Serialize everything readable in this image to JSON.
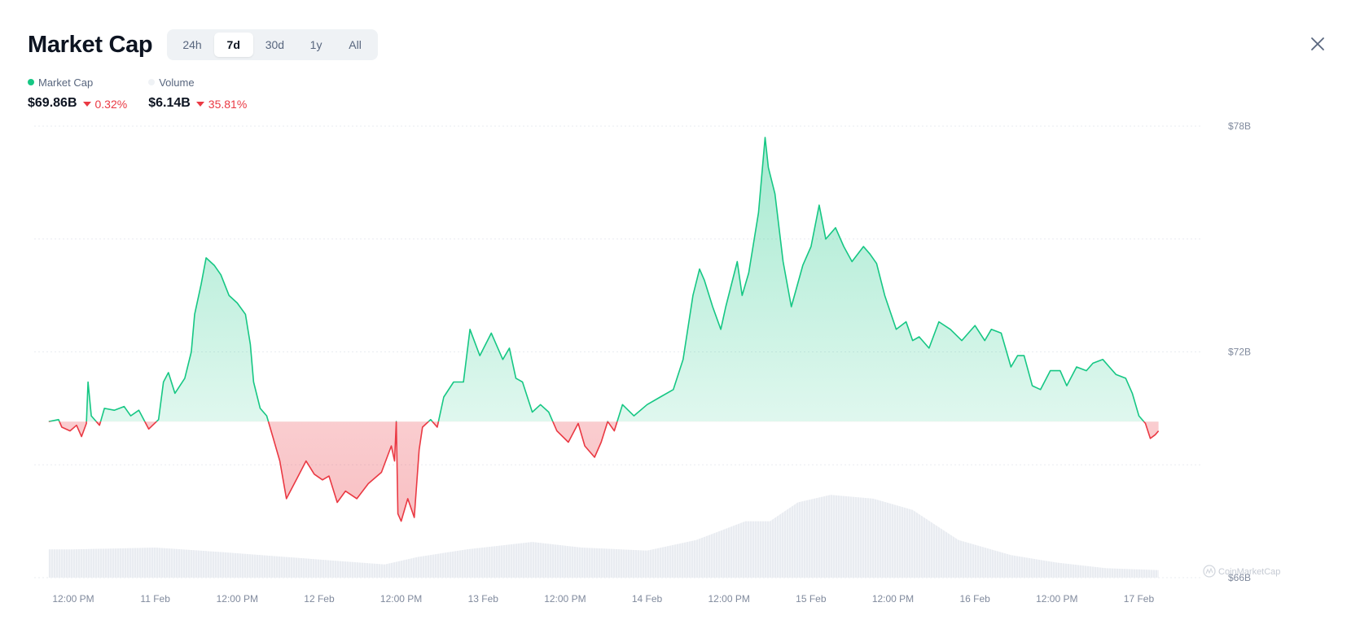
{
  "header": {
    "title": "Market Cap",
    "tabs": [
      {
        "label": "24h",
        "active": false
      },
      {
        "label": "7d",
        "active": true
      },
      {
        "label": "30d",
        "active": false
      },
      {
        "label": "1y",
        "active": false
      },
      {
        "label": "All",
        "active": false
      }
    ],
    "close_icon": "close-icon"
  },
  "legend": {
    "market_cap": {
      "label": "Market Cap",
      "value": "$69.86B",
      "change": "0.32%",
      "color": "#16c784"
    },
    "volume": {
      "label": "Volume",
      "value": "$6.14B",
      "change": "35.81%",
      "color": "#eff2f5"
    }
  },
  "colors": {
    "up": "#16c784",
    "down": "#ea3943",
    "neutral": "#808a9d"
  },
  "watermark": "CoinMarketCap",
  "chart_data": {
    "type": "area",
    "title": "Market Cap",
    "baseline": 70.15,
    "ylim": [
      66,
      78
    ],
    "y_ticks": [
      66,
      72,
      78
    ],
    "y_tick_labels": [
      "$66B",
      "$72B",
      "$78B"
    ],
    "x_range": [
      0,
      7
    ],
    "x_ticks": [
      {
        "x": 0.0,
        "label": "12:00 PM"
      },
      {
        "x": 0.5,
        "label": "11 Feb"
      },
      {
        "x": 1.0,
        "label": "12:00 PM"
      },
      {
        "x": 1.5,
        "label": "12 Feb"
      },
      {
        "x": 2.0,
        "label": "12:00 PM"
      },
      {
        "x": 2.5,
        "label": "13 Feb"
      },
      {
        "x": 3.0,
        "label": "12:00 PM"
      },
      {
        "x": 3.5,
        "label": "14 Feb"
      },
      {
        "x": 4.0,
        "label": "12:00 PM"
      },
      {
        "x": 4.5,
        "label": "15 Feb"
      },
      {
        "x": 5.0,
        "label": "12:00 PM"
      },
      {
        "x": 5.5,
        "label": "16 Feb"
      },
      {
        "x": 6.0,
        "label": "12:00 PM"
      },
      {
        "x": 6.5,
        "label": "17 Feb"
      }
    ],
    "series": [
      {
        "name": "Market Cap",
        "points": [
          [
            -0.15,
            70.15
          ],
          [
            -0.09,
            70.2
          ],
          [
            -0.07,
            70.0
          ],
          [
            -0.02,
            69.9
          ],
          [
            0.02,
            70.05
          ],
          [
            0.05,
            69.75
          ],
          [
            0.08,
            70.1
          ],
          [
            0.09,
            71.2
          ],
          [
            0.11,
            70.3
          ],
          [
            0.16,
            70.05
          ],
          [
            0.19,
            70.5
          ],
          [
            0.25,
            70.45
          ],
          [
            0.31,
            70.55
          ],
          [
            0.35,
            70.3
          ],
          [
            0.4,
            70.45
          ],
          [
            0.46,
            69.95
          ],
          [
            0.52,
            70.2
          ],
          [
            0.55,
            71.2
          ],
          [
            0.58,
            71.45
          ],
          [
            0.62,
            70.9
          ],
          [
            0.68,
            71.3
          ],
          [
            0.72,
            72.0
          ],
          [
            0.74,
            73.0
          ],
          [
            0.78,
            73.8
          ],
          [
            0.81,
            74.5
          ],
          [
            0.86,
            74.3
          ],
          [
            0.9,
            74.05
          ],
          [
            0.95,
            73.5
          ],
          [
            1.0,
            73.3
          ],
          [
            1.05,
            73.0
          ],
          [
            1.08,
            72.2
          ],
          [
            1.1,
            71.2
          ],
          [
            1.14,
            70.5
          ],
          [
            1.18,
            70.3
          ],
          [
            1.22,
            69.7
          ],
          [
            1.26,
            69.1
          ],
          [
            1.3,
            68.1
          ],
          [
            1.36,
            68.6
          ],
          [
            1.42,
            69.1
          ],
          [
            1.47,
            68.75
          ],
          [
            1.52,
            68.6
          ],
          [
            1.56,
            68.7
          ],
          [
            1.61,
            68.0
          ],
          [
            1.66,
            68.3
          ],
          [
            1.73,
            68.1
          ],
          [
            1.8,
            68.5
          ],
          [
            1.88,
            68.8
          ],
          [
            1.94,
            69.5
          ],
          [
            1.96,
            69.1
          ],
          [
            1.97,
            70.15
          ],
          [
            1.98,
            67.7
          ],
          [
            2.0,
            67.5
          ],
          [
            2.04,
            68.1
          ],
          [
            2.08,
            67.6
          ],
          [
            2.11,
            69.4
          ],
          [
            2.13,
            70.0
          ],
          [
            2.18,
            70.2
          ],
          [
            2.22,
            70.0
          ],
          [
            2.26,
            70.8
          ],
          [
            2.32,
            71.2
          ],
          [
            2.38,
            71.2
          ],
          [
            2.42,
            72.6
          ],
          [
            2.48,
            71.9
          ],
          [
            2.55,
            72.5
          ],
          [
            2.62,
            71.8
          ],
          [
            2.66,
            72.1
          ],
          [
            2.7,
            71.3
          ],
          [
            2.74,
            71.2
          ],
          [
            2.8,
            70.4
          ],
          [
            2.85,
            70.6
          ],
          [
            2.9,
            70.4
          ],
          [
            2.95,
            69.9
          ],
          [
            3.02,
            69.6
          ],
          [
            3.08,
            70.1
          ],
          [
            3.12,
            69.5
          ],
          [
            3.18,
            69.2
          ],
          [
            3.22,
            69.6
          ],
          [
            3.26,
            70.15
          ],
          [
            3.3,
            69.9
          ],
          [
            3.35,
            70.6
          ],
          [
            3.42,
            70.3
          ],
          [
            3.5,
            70.6
          ],
          [
            3.58,
            70.8
          ],
          [
            3.66,
            71.0
          ],
          [
            3.72,
            71.8
          ],
          [
            3.78,
            73.5
          ],
          [
            3.82,
            74.2
          ],
          [
            3.85,
            73.9
          ],
          [
            3.9,
            73.2
          ],
          [
            3.95,
            72.6
          ],
          [
            3.98,
            73.2
          ],
          [
            4.05,
            74.4
          ],
          [
            4.08,
            73.5
          ],
          [
            4.12,
            74.1
          ],
          [
            4.18,
            75.7
          ],
          [
            4.22,
            77.7
          ],
          [
            4.24,
            76.9
          ],
          [
            4.28,
            76.2
          ],
          [
            4.33,
            74.4
          ],
          [
            4.38,
            73.2
          ],
          [
            4.45,
            74.3
          ],
          [
            4.5,
            74.8
          ],
          [
            4.55,
            75.9
          ],
          [
            4.59,
            75.0
          ],
          [
            4.65,
            75.3
          ],
          [
            4.7,
            74.8
          ],
          [
            4.75,
            74.4
          ],
          [
            4.82,
            74.8
          ],
          [
            4.86,
            74.6
          ],
          [
            4.9,
            74.35
          ],
          [
            4.95,
            73.5
          ],
          [
            5.02,
            72.6
          ],
          [
            5.08,
            72.8
          ],
          [
            5.12,
            72.3
          ],
          [
            5.16,
            72.4
          ],
          [
            5.22,
            72.1
          ],
          [
            5.28,
            72.8
          ],
          [
            5.35,
            72.6
          ],
          [
            5.42,
            72.3
          ],
          [
            5.5,
            72.7
          ],
          [
            5.56,
            72.3
          ],
          [
            5.6,
            72.6
          ],
          [
            5.66,
            72.5
          ],
          [
            5.72,
            71.6
          ],
          [
            5.76,
            71.9
          ],
          [
            5.8,
            71.9
          ],
          [
            5.85,
            71.1
          ],
          [
            5.9,
            71.0
          ],
          [
            5.96,
            71.5
          ],
          [
            6.02,
            71.5
          ],
          [
            6.06,
            71.1
          ],
          [
            6.12,
            71.6
          ],
          [
            6.18,
            71.5
          ],
          [
            6.22,
            71.7
          ],
          [
            6.28,
            71.8
          ],
          [
            6.32,
            71.6
          ],
          [
            6.36,
            71.4
          ],
          [
            6.42,
            71.3
          ],
          [
            6.46,
            70.9
          ],
          [
            6.5,
            70.3
          ],
          [
            6.54,
            70.1
          ],
          [
            6.57,
            69.7
          ],
          [
            6.6,
            69.8
          ],
          [
            6.62,
            69.9
          ]
        ]
      }
    ],
    "volume_series": {
      "name": "Volume",
      "points": [
        [
          -0.15,
          66.75
        ],
        [
          0.0,
          66.75
        ],
        [
          0.5,
          66.8
        ],
        [
          0.9,
          66.68
        ],
        [
          1.3,
          66.55
        ],
        [
          1.6,
          66.45
        ],
        [
          1.9,
          66.35
        ],
        [
          2.1,
          66.55
        ],
        [
          2.4,
          66.75
        ],
        [
          2.8,
          66.95
        ],
        [
          3.1,
          66.8
        ],
        [
          3.5,
          66.72
        ],
        [
          3.8,
          67.0
        ],
        [
          4.1,
          67.5
        ],
        [
          4.25,
          67.5
        ],
        [
          4.42,
          68.0
        ],
        [
          4.62,
          68.2
        ],
        [
          4.88,
          68.1
        ],
        [
          5.12,
          67.8
        ],
        [
          5.4,
          67.0
        ],
        [
          5.72,
          66.6
        ],
        [
          6.0,
          66.4
        ],
        [
          6.3,
          66.25
        ],
        [
          6.62,
          66.2
        ]
      ]
    }
  }
}
